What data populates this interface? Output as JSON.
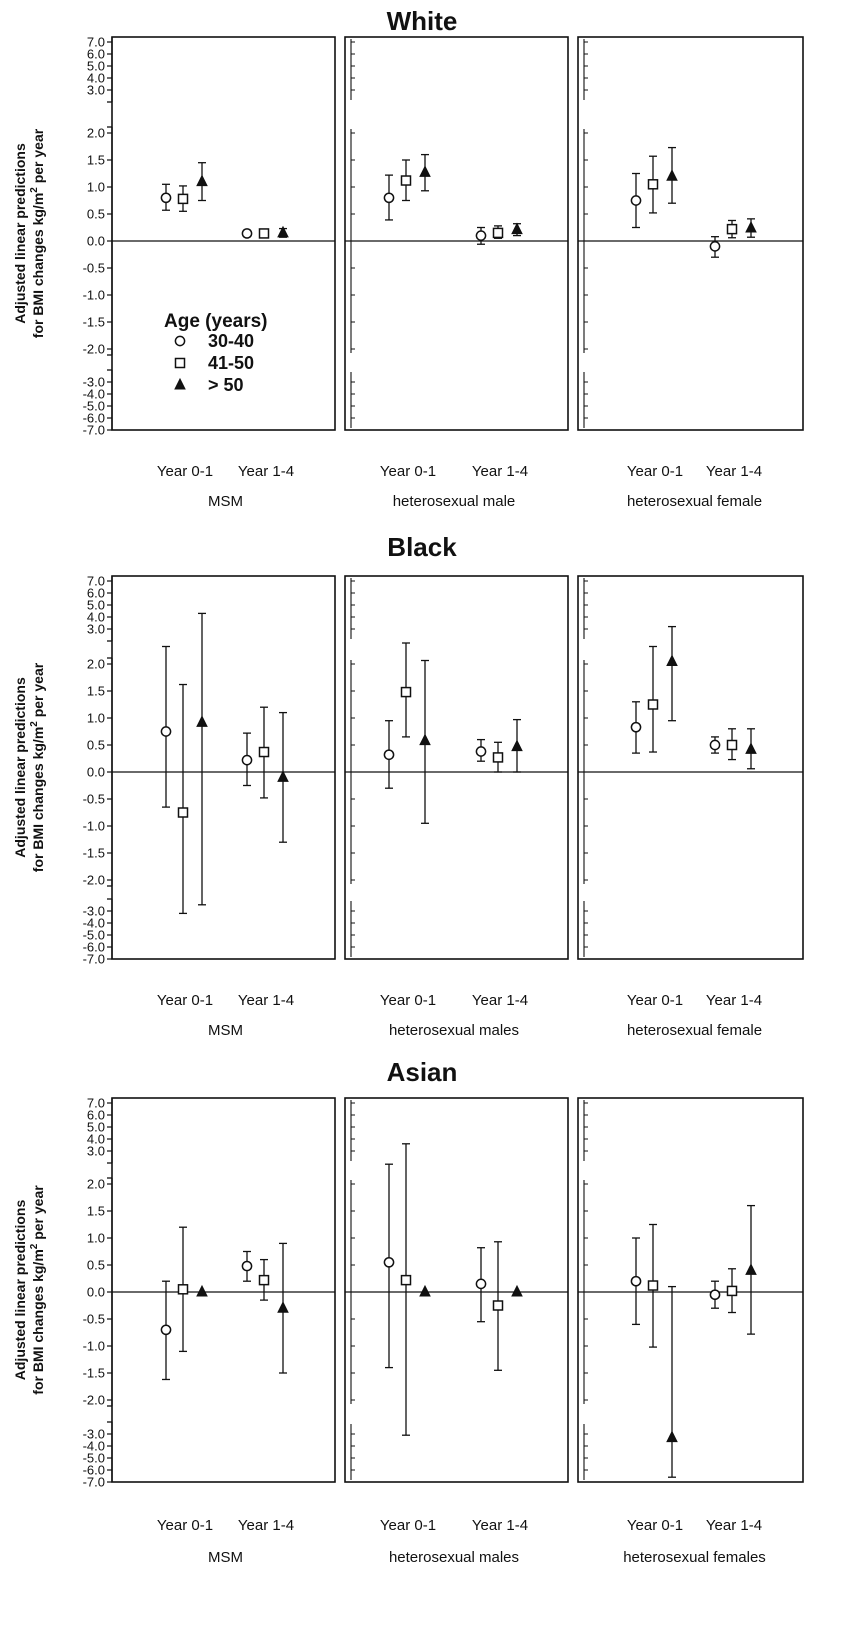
{
  "chart_data": [
    {
      "type": "scatter",
      "title": "White",
      "ylabel_line1": "Adjusted linear predictions",
      "ylabel_line2": "for BMI changes kg/m",
      "ylabel_sup": "2",
      "ylabel_line2_end": "per year",
      "upper_ticks": [
        "7.0",
        "6.0",
        "5.0",
        "4.0",
        "3.0"
      ],
      "mid_ticks": [
        "2.0",
        "1.5",
        "1.0",
        "0.5",
        "0.0",
        "-0.5",
        "-1.0",
        "-1.5",
        "-2.0"
      ],
      "lower_ticks": [
        "-3.0",
        "-4.0",
        "-5.0",
        "-6.0",
        "-7.0"
      ],
      "ylim_mid": [
        -2.0,
        2.0
      ],
      "legend": {
        "title": "Age (years)",
        "items": [
          {
            "marker": "circle",
            "label": "30-40"
          },
          {
            "marker": "square",
            "label": "41-50"
          },
          {
            "marker": "triangle",
            "label": "> 50"
          }
        ]
      },
      "panels": [
        {
          "group": "MSM",
          "categories": [
            "Year 0-1",
            "Year 1-4"
          ],
          "series": [
            {
              "name": "30-40",
              "marker": "circle",
              "points": [
                {
                  "y": 0.8,
                  "lo": 0.57,
                  "hi": 1.05
                },
                {
                  "y": 0.14,
                  "lo": 0.08,
                  "hi": 0.2
                }
              ]
            },
            {
              "name": "41-50",
              "marker": "square",
              "points": [
                {
                  "y": 0.78,
                  "lo": 0.55,
                  "hi": 1.02
                },
                {
                  "y": 0.14,
                  "lo": 0.08,
                  "hi": 0.21
                }
              ]
            },
            {
              "name": "> 50",
              "marker": "triangle",
              "points": [
                {
                  "y": 1.1,
                  "lo": 0.75,
                  "hi": 1.45
                },
                {
                  "y": 0.15,
                  "lo": 0.07,
                  "hi": 0.23
                }
              ]
            }
          ]
        },
        {
          "group": "heterosexual male",
          "categories": [
            "Year 0-1",
            "Year 1-4"
          ],
          "series": [
            {
              "name": "30-40",
              "marker": "circle",
              "points": [
                {
                  "y": 0.8,
                  "lo": 0.39,
                  "hi": 1.22
                },
                {
                  "y": 0.1,
                  "lo": -0.06,
                  "hi": 0.25
                }
              ]
            },
            {
              "name": "41-50",
              "marker": "square",
              "points": [
                {
                  "y": 1.12,
                  "lo": 0.75,
                  "hi": 1.5
                },
                {
                  "y": 0.15,
                  "lo": 0.05,
                  "hi": 0.28
                }
              ]
            },
            {
              "name": "> 50",
              "marker": "triangle",
              "points": [
                {
                  "y": 1.27,
                  "lo": 0.93,
                  "hi": 1.6
                },
                {
                  "y": 0.21,
                  "lo": 0.1,
                  "hi": 0.32
                }
              ]
            }
          ]
        },
        {
          "group": "heterosexual female",
          "categories": [
            "Year 0-1",
            "Year 1-4"
          ],
          "series": [
            {
              "name": "30-40",
              "marker": "circle",
              "points": [
                {
                  "y": 0.75,
                  "lo": 0.25,
                  "hi": 1.25
                },
                {
                  "y": -0.1,
                  "lo": -0.3,
                  "hi": 0.08
                }
              ]
            },
            {
              "name": "41-50",
              "marker": "square",
              "points": [
                {
                  "y": 1.05,
                  "lo": 0.52,
                  "hi": 1.57
                },
                {
                  "y": 0.22,
                  "lo": 0.06,
                  "hi": 0.38
                }
              ]
            },
            {
              "name": "> 50",
              "marker": "triangle",
              "points": [
                {
                  "y": 1.2,
                  "lo": 0.7,
                  "hi": 1.73
                },
                {
                  "y": 0.24,
                  "lo": 0.07,
                  "hi": 0.41
                }
              ]
            }
          ]
        }
      ]
    },
    {
      "type": "scatter",
      "title": "Black",
      "ylabel_line1": "Adjusted linear predictions",
      "ylabel_line2": "for BMI changes kg/m",
      "ylabel_sup": "2",
      "ylabel_line2_end": "per year",
      "upper_ticks": [
        "7.0",
        "6.0",
        "5.0",
        "4.0",
        "3.0"
      ],
      "mid_ticks": [
        "2.0",
        "1.5",
        "1.0",
        "0.5",
        "0.0",
        "-0.5",
        "-1.0",
        "-1.5",
        "-2.0"
      ],
      "lower_ticks": [
        "-3.0",
        "-4.0",
        "-5.0",
        "-6.0",
        "-7.0"
      ],
      "ylim_mid": [
        -2.0,
        2.0
      ],
      "panels": [
        {
          "group": "MSM",
          "categories": [
            "Year 0-1",
            "Year 1-4"
          ],
          "series": [
            {
              "name": "30-40",
              "marker": "circle",
              "points": [
                {
                  "y": 0.75,
                  "lo": -0.65,
                  "hi": 2.5
                },
                {
                  "y": 0.22,
                  "lo": -0.25,
                  "hi": 0.72
                }
              ]
            },
            {
              "name": "41-50",
              "marker": "square",
              "points": [
                {
                  "y": -0.75,
                  "lo": -3.2,
                  "hi": 1.62
                },
                {
                  "y": 0.37,
                  "lo": -0.48,
                  "hi": 1.2
                }
              ]
            },
            {
              "name": "> 50",
              "marker": "triangle",
              "points": [
                {
                  "y": 0.92,
                  "lo": -2.8,
                  "hi": 4.3
                },
                {
                  "y": -0.1,
                  "lo": -1.3,
                  "hi": 1.1
                }
              ]
            }
          ]
        },
        {
          "group": "heterosexual males",
          "categories": [
            "Year 0-1",
            "Year 1-4"
          ],
          "series": [
            {
              "name": "30-40",
              "marker": "circle",
              "points": [
                {
                  "y": 0.32,
                  "lo": -0.3,
                  "hi": 0.95
                },
                {
                  "y": 0.38,
                  "lo": 0.2,
                  "hi": 0.6
                }
              ]
            },
            {
              "name": "41-50",
              "marker": "square",
              "points": [
                {
                  "y": 1.48,
                  "lo": 0.65,
                  "hi": 2.6
                },
                {
                  "y": 0.27,
                  "lo": 0.0,
                  "hi": 0.55
                }
              ]
            },
            {
              "name": "> 50",
              "marker": "triangle",
              "points": [
                {
                  "y": 0.58,
                  "lo": -0.95,
                  "hi": 2.1
                },
                {
                  "y": 0.47,
                  "lo": 0.0,
                  "hi": 0.97
                }
              ]
            }
          ]
        },
        {
          "group": "heterosexual female",
          "categories": [
            "Year 0-1",
            "Year 1-4"
          ],
          "series": [
            {
              "name": "30-40",
              "marker": "circle",
              "points": [
                {
                  "y": 0.83,
                  "lo": 0.35,
                  "hi": 1.3
                },
                {
                  "y": 0.5,
                  "lo": 0.35,
                  "hi": 0.65
                }
              ]
            },
            {
              "name": "41-50",
              "marker": "square",
              "points": [
                {
                  "y": 1.25,
                  "lo": 0.37,
                  "hi": 2.5
                },
                {
                  "y": 0.5,
                  "lo": 0.23,
                  "hi": 0.8
                }
              ]
            },
            {
              "name": "> 50",
              "marker": "triangle",
              "points": [
                {
                  "y": 2.07,
                  "lo": 0.95,
                  "hi": 3.2
                },
                {
                  "y": 0.42,
                  "lo": 0.06,
                  "hi": 0.8
                }
              ]
            }
          ]
        }
      ]
    },
    {
      "type": "scatter",
      "title": "Asian",
      "ylabel_line1": "Adjusted linear predictions",
      "ylabel_line2": "for BMI changes kg/m",
      "ylabel_sup": "2",
      "ylabel_line2_end": "per year",
      "upper_ticks": [
        "7.0",
        "6.0",
        "5.0",
        "4.0",
        "3.0"
      ],
      "mid_ticks": [
        "2.0",
        "1.5",
        "1.0",
        "0.5",
        "0.0",
        "-0.5",
        "-1.0",
        "-1.5",
        "-2.0"
      ],
      "lower_ticks": [
        "-3.0",
        "-4.0",
        "-5.0",
        "-6.0",
        "-7.0"
      ],
      "ylim_mid": [
        -2.0,
        2.0
      ],
      "panels": [
        {
          "group": "MSM",
          "categories": [
            "Year 0-1",
            "Year 1-4"
          ],
          "series": [
            {
              "name": "30-40",
              "marker": "circle",
              "points": [
                {
                  "y": -0.7,
                  "lo": -1.62,
                  "hi": 0.2
                },
                {
                  "y": 0.48,
                  "lo": 0.2,
                  "hi": 0.75
                }
              ]
            },
            {
              "name": "41-50",
              "marker": "square",
              "points": [
                {
                  "y": 0.05,
                  "lo": -1.1,
                  "hi": 1.2
                },
                {
                  "y": 0.22,
                  "lo": -0.15,
                  "hi": 0.6
                }
              ]
            },
            {
              "name": "> 50",
              "marker": "triangle",
              "points": [
                {
                  "y": 0.0,
                  "lo": null,
                  "hi": null
                },
                {
                  "y": -0.3,
                  "lo": -1.5,
                  "hi": 0.9
                }
              ]
            }
          ]
        },
        {
          "group": "heterosexual males",
          "categories": [
            "Year 0-1",
            "Year 1-4"
          ],
          "series": [
            {
              "name": "30-40",
              "marker": "circle",
              "points": [
                {
                  "y": 0.55,
                  "lo": -1.4,
                  "hi": 2.6
                },
                {
                  "y": 0.15,
                  "lo": -0.55,
                  "hi": 0.82
                }
              ]
            },
            {
              "name": "41-50",
              "marker": "square",
              "points": [
                {
                  "y": 0.22,
                  "lo": -3.1,
                  "hi": 3.6
                },
                {
                  "y": -0.25,
                  "lo": -1.45,
                  "hi": 0.93
                }
              ]
            },
            {
              "name": "> 50",
              "marker": "triangle",
              "points": [
                {
                  "y": 0.0,
                  "lo": null,
                  "hi": null
                },
                {
                  "y": 0.0,
                  "lo": null,
                  "hi": null
                }
              ]
            }
          ]
        },
        {
          "group": "heterosexual females",
          "categories": [
            "Year 0-1",
            "Year 1-4"
          ],
          "series": [
            {
              "name": "30-40",
              "marker": "circle",
              "points": [
                {
                  "y": 0.2,
                  "lo": -0.6,
                  "hi": 1.0
                },
                {
                  "y": -0.05,
                  "lo": -0.3,
                  "hi": 0.2
                }
              ]
            },
            {
              "name": "41-50",
              "marker": "square",
              "points": [
                {
                  "y": 0.12,
                  "lo": -1.02,
                  "hi": 1.25
                },
                {
                  "y": 0.02,
                  "lo": -0.38,
                  "hi": 0.43
                }
              ]
            },
            {
              "name": "> 50",
              "marker": "triangle",
              "points": [
                {
                  "y": -3.3,
                  "lo": -6.6,
                  "hi": 0.1
                },
                {
                  "y": 0.4,
                  "lo": -0.78,
                  "hi": 1.6
                }
              ]
            }
          ]
        }
      ]
    }
  ]
}
